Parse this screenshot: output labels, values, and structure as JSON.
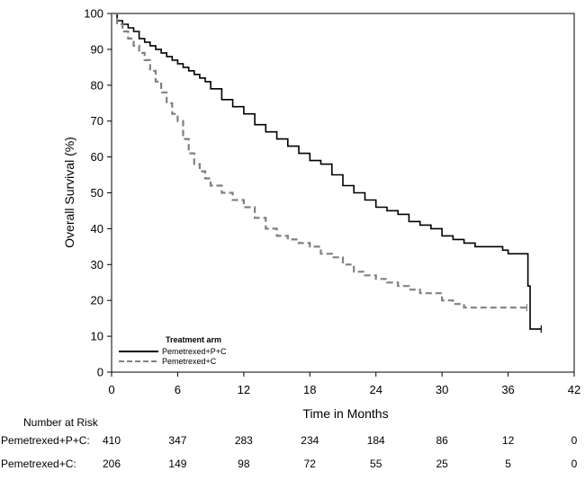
{
  "chart_data": {
    "type": "line",
    "title": "",
    "xlabel": "Time in Months",
    "ylabel": "Overall Survival (%)",
    "xlim": [
      0,
      42
    ],
    "ylim": [
      0,
      100
    ],
    "x_ticks": [
      0,
      6,
      12,
      18,
      24,
      30,
      36,
      42
    ],
    "y_ticks": [
      0,
      10,
      20,
      30,
      40,
      50,
      60,
      70,
      80,
      90,
      100
    ],
    "grid": false,
    "legend": {
      "title": "Treatment arm",
      "placement": "bottom-left",
      "entries": [
        "Pemetrexed+P+C",
        "Pemetrexed+C"
      ]
    },
    "series": [
      {
        "name": "Pemetrexed+P+C",
        "color": "#000000",
        "style": "solid",
        "x": [
          0,
          0.5,
          1,
          1.5,
          2,
          2.5,
          3,
          3.5,
          4,
          4.5,
          5,
          5.5,
          6,
          6.5,
          7,
          7.5,
          8,
          8.5,
          9,
          10,
          11,
          12,
          13,
          14,
          15,
          16,
          17,
          18,
          19,
          20,
          21,
          22,
          23,
          24,
          25,
          26,
          27,
          28,
          29,
          30,
          31,
          32,
          33,
          34,
          35,
          35.5,
          36,
          37,
          37.6,
          37.8,
          38,
          39
        ],
        "y": [
          100,
          98,
          97,
          96,
          95,
          93,
          92,
          91,
          90,
          89,
          88,
          87,
          86,
          85,
          84,
          83,
          82,
          81,
          79,
          76,
          74,
          72,
          69,
          67,
          65,
          63,
          61,
          59,
          58,
          55,
          52,
          50,
          48,
          46,
          45,
          44,
          42,
          41,
          40,
          38,
          37,
          36,
          35,
          35,
          35,
          34,
          33,
          33,
          33,
          24,
          12,
          12
        ]
      },
      {
        "name": "Pemetrexed+C",
        "color": "#808080",
        "style": "dashed",
        "x": [
          0,
          0.5,
          1,
          1.5,
          2,
          2.5,
          3,
          3.5,
          4,
          4.5,
          5,
          5.5,
          6,
          6.5,
          7,
          7.5,
          8,
          8.5,
          9,
          10,
          11,
          12,
          13,
          14,
          15,
          16,
          17,
          18,
          19,
          20,
          21,
          22,
          23,
          24,
          25,
          26,
          27,
          28,
          29,
          30,
          31,
          32,
          33,
          34,
          35,
          36,
          37,
          37.7
        ],
        "y": [
          100,
          97,
          95,
          93,
          91,
          89,
          87,
          84,
          81,
          78,
          75,
          72,
          70,
          65,
          61,
          58,
          56,
          54,
          52,
          50,
          48,
          46,
          43,
          40,
          38,
          37,
          36,
          35,
          33,
          32,
          30,
          28,
          27,
          26,
          25,
          24,
          23,
          22,
          22,
          20,
          19,
          18,
          18,
          18,
          18,
          18,
          18,
          18
        ]
      }
    ],
    "number_at_risk": {
      "title": "Number at Risk",
      "times": [
        0,
        6,
        12,
        18,
        24,
        30,
        36,
        42
      ],
      "rows": [
        {
          "label": "Pemetrexed+P+C:",
          "values": [
            "410",
            "347",
            "283",
            "234",
            "184",
            "86",
            "12",
            "0"
          ]
        },
        {
          "label": "Pemetrexed+C:",
          "values": [
            "206",
            "149",
            "98",
            "72",
            "55",
            "25",
            "5",
            "0"
          ]
        }
      ]
    }
  }
}
